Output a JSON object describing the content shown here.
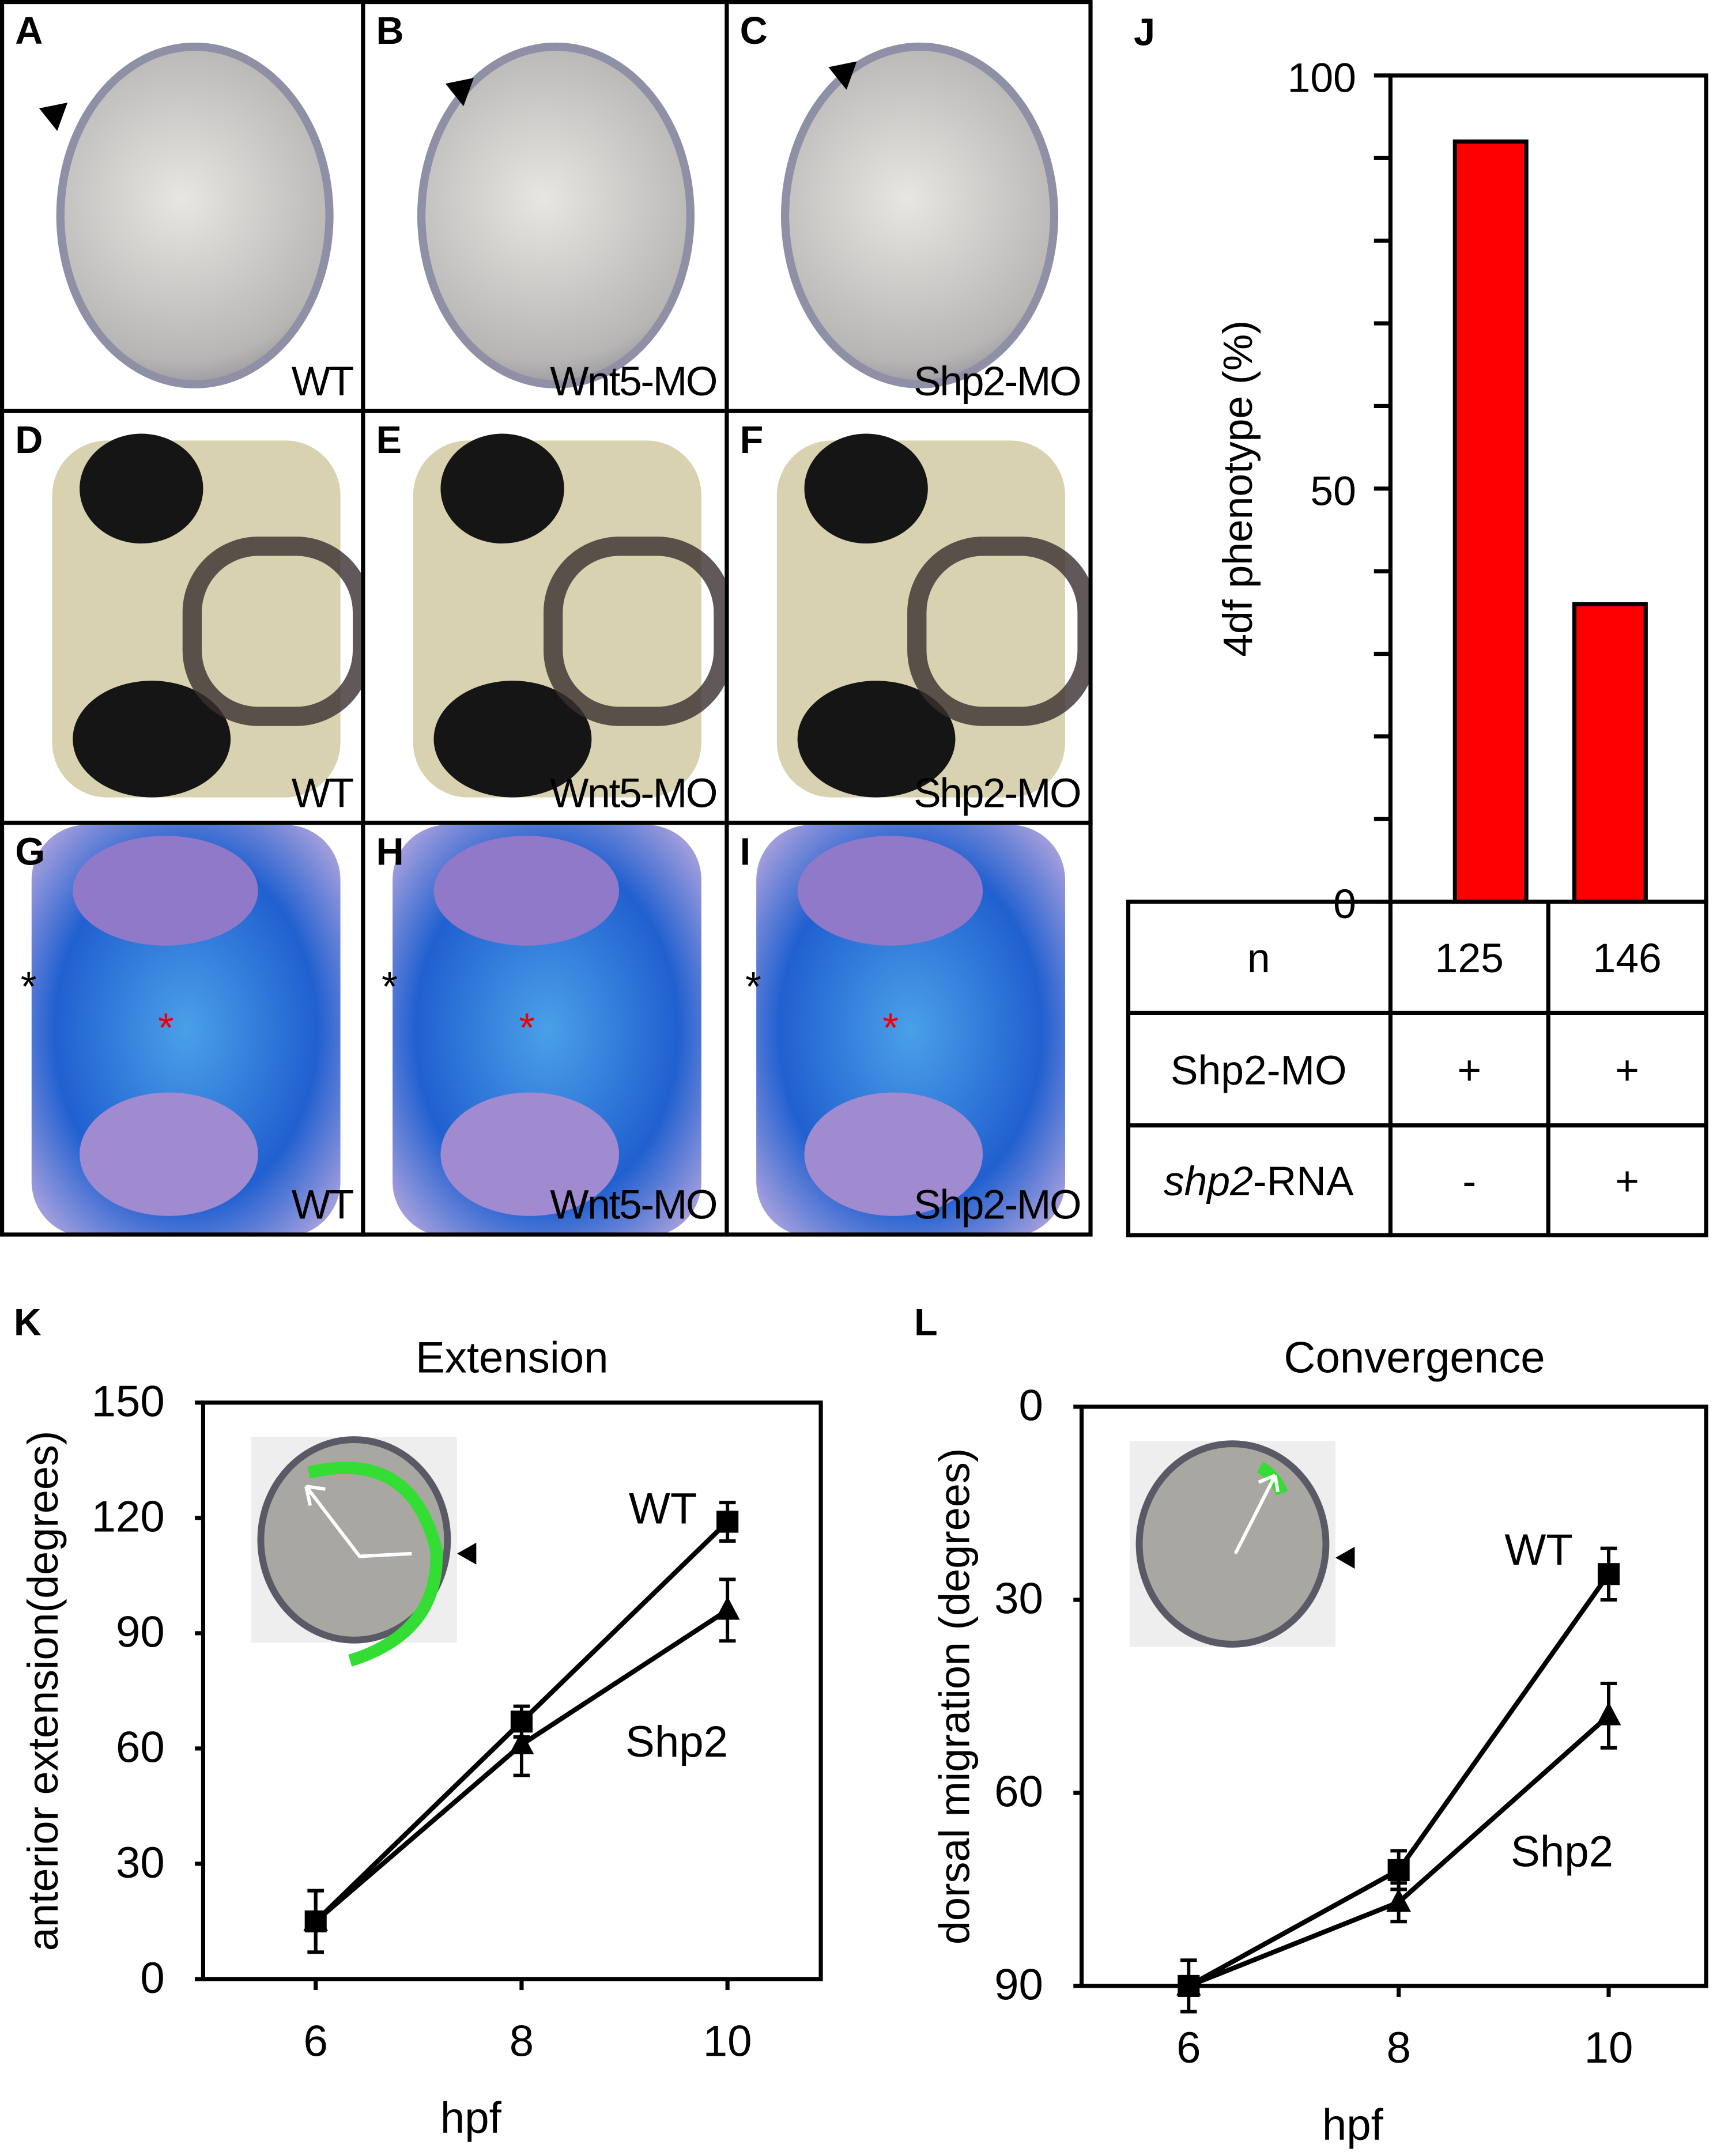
{
  "panels": [
    {
      "label": "A",
      "caption": "WT",
      "kind": "embryo"
    },
    {
      "label": "B",
      "caption": "Wnt5-MO",
      "kind": "embryo"
    },
    {
      "label": "C",
      "caption": "Shp2-MO",
      "kind": "embryo"
    },
    {
      "label": "D",
      "caption": "WT",
      "kind": "head"
    },
    {
      "label": "E",
      "caption": "Wnt5-MO",
      "kind": "head"
    },
    {
      "label": "F",
      "caption": "Shp2-MO",
      "kind": "head"
    },
    {
      "label": "G",
      "caption": "WT",
      "kind": "cartilage"
    },
    {
      "label": "H",
      "caption": "Wnt5-MO",
      "kind": "cartilage"
    },
    {
      "label": "I",
      "caption": "Shp2-MO",
      "kind": "cartilage"
    }
  ],
  "chart_data": [
    {
      "panel": "J",
      "type": "bar",
      "ylabel": "4df phenotype (%)",
      "ylim": [
        0,
        100
      ],
      "yticks": [
        "0",
        "50",
        "100"
      ],
      "values": [
        92,
        36
      ],
      "bar_color": "#ff0000",
      "table": {
        "rows": [
          {
            "label": "n",
            "values": [
              "125",
              "146"
            ]
          },
          {
            "label": "Shp2-MO",
            "values": [
              "+",
              "+"
            ]
          },
          {
            "label": "shp2",
            "label_suffix": "-RNA",
            "values": [
              "-",
              "+"
            ]
          }
        ]
      }
    },
    {
      "panel": "K",
      "type": "line",
      "title": "Extension",
      "xlabel": "hpf",
      "ylabel": "anterior extension(degrees)",
      "ylim": [
        0,
        150
      ],
      "yticks": [
        "0",
        "30",
        "60",
        "90",
        "120",
        "150"
      ],
      "xticks": [
        "6",
        "8",
        "10"
      ],
      "x": [
        6,
        8,
        10
      ],
      "series": [
        {
          "name": "WT",
          "marker": "square",
          "values": [
            15,
            67,
            119
          ],
          "errors": [
            8,
            4,
            5
          ]
        },
        {
          "name": "Shp2",
          "marker": "triangle",
          "values": [
            15,
            61,
            96
          ],
          "errors": [
            8,
            8,
            8
          ]
        }
      ]
    },
    {
      "panel": "L",
      "type": "line",
      "title": "Convergence",
      "xlabel": "hpf",
      "ylabel": "dorsal migration (degrees)",
      "ylim": [
        90,
        0
      ],
      "inverted": true,
      "yticks": [
        "0",
        "30",
        "60",
        "90"
      ],
      "xticks": [
        "6",
        "8",
        "10"
      ],
      "x": [
        6,
        8,
        10
      ],
      "series": [
        {
          "name": "WT",
          "marker": "square",
          "values": [
            90,
            72,
            26
          ],
          "errors": [
            4,
            3,
            4
          ]
        },
        {
          "name": "Shp2",
          "marker": "triangle",
          "values": [
            90,
            77,
            48
          ],
          "errors": [
            0,
            3,
            5
          ]
        }
      ]
    }
  ]
}
